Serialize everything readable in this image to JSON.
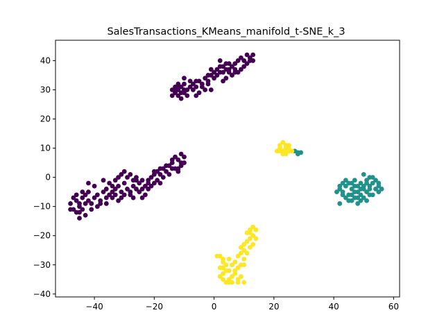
{
  "chart_data": {
    "type": "scatter",
    "title": "SalesTransactions_KMeans_manifold_t-SNE_k_3",
    "xlabel": "",
    "ylabel": "",
    "xlim": [
      -53,
      62
    ],
    "ylim": [
      -41,
      47
    ],
    "xticks": [
      -40,
      -20,
      0,
      20,
      40,
      60
    ],
    "xtick_labels": [
      "−40",
      "−20",
      "0",
      "20",
      "40",
      "60"
    ],
    "yticks": [
      -40,
      -30,
      -20,
      -10,
      0,
      10,
      20,
      30,
      40
    ],
    "ytick_labels": [
      "−40",
      "−30",
      "−20",
      "−10",
      "0",
      "10",
      "20",
      "30",
      "40"
    ],
    "grid": false,
    "legend": "none",
    "series": [
      {
        "color": "#440154",
        "points": [
          [
            -12,
            30
          ],
          [
            -13,
            29
          ],
          [
            -11,
            31
          ],
          [
            -14,
            30
          ],
          [
            -10,
            29
          ],
          [
            -12,
            28
          ],
          [
            -11,
            27
          ],
          [
            -9,
            30
          ],
          [
            -13,
            31
          ],
          [
            -10,
            32
          ],
          [
            -8,
            31
          ],
          [
            -14,
            28
          ],
          [
            -12,
            32
          ],
          [
            -9,
            28
          ],
          [
            -11,
            29
          ],
          [
            -7,
            32
          ],
          [
            -6,
            31
          ],
          [
            -5,
            33
          ],
          [
            -4,
            32
          ],
          [
            -3,
            34
          ],
          [
            -2,
            33
          ],
          [
            -1,
            35
          ],
          [
            0,
            36
          ],
          [
            1,
            37
          ],
          [
            2,
            36
          ],
          [
            3,
            38
          ],
          [
            4,
            37
          ],
          [
            5,
            36
          ],
          [
            6,
            38
          ],
          [
            7,
            39
          ],
          [
            8,
            40
          ],
          [
            9,
            41
          ],
          [
            10,
            40
          ],
          [
            11,
            42
          ],
          [
            12,
            41
          ],
          [
            13,
            42
          ],
          [
            12,
            40
          ],
          [
            6,
            35
          ],
          [
            5,
            37
          ],
          [
            4,
            39
          ],
          [
            3,
            36
          ],
          [
            2,
            38
          ],
          [
            1,
            35
          ],
          [
            0,
            34
          ],
          [
            -1,
            37
          ],
          [
            -2,
            32
          ],
          [
            -3,
            30
          ],
          [
            -4,
            31
          ],
          [
            -5,
            29
          ],
          [
            -6,
            33
          ],
          [
            -7,
            30
          ],
          [
            3,
            33
          ],
          [
            4,
            34
          ],
          [
            -10,
            34
          ],
          [
            -6,
            28
          ],
          [
            8,
            36
          ],
          [
            9,
            37
          ],
          [
            10,
            38
          ],
          [
            7,
            36
          ],
          [
            5,
            39
          ],
          [
            -1,
            30
          ],
          [
            -8,
            33
          ],
          [
            -2,
            35
          ],
          [
            2,
            40
          ],
          [
            7,
            37
          ],
          [
            11,
            39
          ],
          [
            13,
            40
          ],
          [
            -12,
            31
          ],
          [
            -10,
            30
          ],
          [
            -13,
            29.5
          ],
          [
            -45,
            -10
          ],
          [
            -46,
            -8
          ],
          [
            -47,
            -11
          ],
          [
            -44,
            -7
          ],
          [
            -45,
            -12
          ],
          [
            -43,
            -9
          ],
          [
            -46,
            -6
          ],
          [
            -48,
            -9
          ],
          [
            -44,
            -11
          ],
          [
            -42,
            -8
          ],
          [
            -47,
            -7
          ],
          [
            -45,
            -14
          ],
          [
            -43,
            -6
          ],
          [
            -41,
            -9
          ],
          [
            -46,
            -12
          ],
          [
            -48,
            -11
          ],
          [
            -42,
            -5
          ],
          [
            -40,
            -7
          ],
          [
            -44,
            -5
          ],
          [
            -45,
            -9
          ],
          [
            -39,
            -6
          ],
          [
            -38,
            -8
          ],
          [
            -37,
            -5
          ],
          [
            -36,
            -4
          ],
          [
            -35,
            -6
          ],
          [
            -34,
            -7
          ],
          [
            -33,
            -4
          ],
          [
            -32,
            -3
          ],
          [
            -31,
            -5
          ],
          [
            -30,
            -2
          ],
          [
            -29,
            -4
          ],
          [
            -28,
            -6
          ],
          [
            -27,
            -3
          ],
          [
            -26,
            -1
          ],
          [
            -25,
            -2
          ],
          [
            -24,
            -4
          ],
          [
            -23,
            -3
          ],
          [
            -22,
            -1
          ],
          [
            -21,
            0
          ],
          [
            -20,
            1
          ],
          [
            -19,
            2
          ],
          [
            -18,
            1
          ],
          [
            -17,
            3
          ],
          [
            -16,
            2
          ],
          [
            -15,
            4
          ],
          [
            -14,
            5
          ],
          [
            -13,
            3
          ],
          [
            -12,
            6
          ],
          [
            -11,
            5
          ],
          [
            -10,
            7
          ],
          [
            -11,
            4
          ],
          [
            -12,
            3
          ],
          [
            -14,
            3
          ],
          [
            -16,
            4
          ],
          [
            -18,
            3
          ],
          [
            -20,
            2
          ],
          [
            -22,
            -2
          ],
          [
            -24,
            -1
          ],
          [
            -26,
            -4
          ],
          [
            -28,
            -5
          ],
          [
            -30,
            -6
          ],
          [
            -32,
            -8
          ],
          [
            -34,
            -3
          ],
          [
            -36,
            -7
          ],
          [
            -38,
            -9
          ],
          [
            -33,
            -1
          ],
          [
            -31,
            1
          ],
          [
            -29,
            0
          ],
          [
            -27,
            -7
          ],
          [
            -25,
            -5
          ],
          [
            -35,
            -2
          ],
          [
            -37,
            -1
          ],
          [
            -30,
            2
          ],
          [
            -28,
            1
          ],
          [
            -26,
            0
          ],
          [
            -23,
            -6
          ],
          [
            -21,
            -3
          ],
          [
            -19,
            -1
          ],
          [
            -17,
            0
          ],
          [
            -15,
            1
          ],
          [
            -13,
            7
          ],
          [
            -10,
            5
          ],
          [
            -11,
            8
          ],
          [
            -12,
            2
          ],
          [
            -14,
            6
          ],
          [
            -40,
            -3
          ],
          [
            -41,
            -11
          ],
          [
            -43,
            -13
          ],
          [
            -39,
            -10
          ],
          [
            -42,
            -2
          ],
          [
            -33,
            -6
          ],
          [
            -31,
            -7
          ],
          [
            -36,
            -9
          ],
          [
            -34,
            -5
          ],
          [
            -32,
            0
          ],
          [
            -27,
            -1
          ],
          [
            -24,
            -7
          ],
          [
            -22,
            -4
          ],
          [
            -20,
            -2
          ],
          [
            -18,
            -2
          ]
        ]
      },
      {
        "color": "#21918c",
        "points": [
          [
            42,
            -4
          ],
          [
            43,
            -5
          ],
          [
            44,
            -3
          ],
          [
            45,
            -6
          ],
          [
            46,
            -4
          ],
          [
            47,
            -5
          ],
          [
            48,
            -3
          ],
          [
            49,
            -6
          ],
          [
            50,
            -4
          ],
          [
            51,
            -5
          ],
          [
            52,
            -3
          ],
          [
            53,
            -2
          ],
          [
            54,
            -4
          ],
          [
            55,
            -3
          ],
          [
            56,
            -4
          ],
          [
            44,
            -7
          ],
          [
            46,
            -8
          ],
          [
            48,
            -7
          ],
          [
            50,
            -7
          ],
          [
            52,
            -6
          ],
          [
            45,
            -2
          ],
          [
            47,
            -1
          ],
          [
            49,
            -2
          ],
          [
            51,
            -1
          ],
          [
            53,
            0
          ],
          [
            50,
            1
          ],
          [
            52,
            0
          ],
          [
            43,
            -6
          ],
          [
            41,
            -5
          ],
          [
            42,
            -3
          ],
          [
            54,
            -1
          ],
          [
            55,
            -5
          ],
          [
            46,
            -6
          ],
          [
            48,
            -5
          ],
          [
            49,
            -4
          ],
          [
            50,
            -3
          ],
          [
            51,
            -2
          ],
          [
            47,
            -3
          ],
          [
            46,
            -2
          ],
          [
            44,
            -1
          ],
          [
            43,
            -2
          ],
          [
            45,
            -8
          ],
          [
            48,
            -9
          ],
          [
            51,
            -8
          ],
          [
            53,
            -6
          ],
          [
            42,
            -9
          ],
          [
            55,
            -2
          ],
          [
            52,
            -4
          ],
          [
            47,
            -7
          ],
          [
            49,
            -8
          ],
          [
            27,
            9
          ],
          [
            28,
            8.5
          ],
          [
            29,
            8.5
          ],
          [
            28,
            8
          ]
        ]
      },
      {
        "color": "#fde725",
        "points": [
          [
            24,
            11
          ],
          [
            23,
            12
          ],
          [
            25,
            10
          ],
          [
            22,
            10
          ],
          [
            23,
            9
          ],
          [
            24,
            8
          ],
          [
            25,
            9
          ],
          [
            21,
            9
          ],
          [
            22,
            11
          ],
          [
            24,
            10
          ],
          [
            23,
            8
          ],
          [
            26,
            9
          ],
          [
            25,
            11
          ],
          [
            24,
            9
          ],
          [
            22,
            9
          ],
          [
            12,
            -18
          ],
          [
            13,
            -20
          ],
          [
            11,
            -22
          ],
          [
            12,
            -24
          ],
          [
            10,
            -25
          ],
          [
            13,
            -17
          ],
          [
            11,
            -19
          ],
          [
            14,
            -21
          ],
          [
            12,
            -21
          ],
          [
            10,
            -23
          ],
          [
            9,
            -26
          ],
          [
            8,
            -27
          ],
          [
            10,
            -28
          ],
          [
            7,
            -29
          ],
          [
            9,
            -30
          ],
          [
            6,
            -30
          ],
          [
            8,
            -31
          ],
          [
            5,
            -32
          ],
          [
            7,
            -33
          ],
          [
            4,
            -32
          ],
          [
            6,
            -34
          ],
          [
            3,
            -33
          ],
          [
            5,
            -35
          ],
          [
            2,
            -34
          ],
          [
            4,
            -36
          ],
          [
            3,
            -35
          ],
          [
            6,
            -36
          ],
          [
            8,
            -35
          ],
          [
            9,
            -34
          ],
          [
            7,
            -32
          ],
          [
            2,
            -27
          ],
          [
            1,
            -27
          ],
          [
            3,
            -29
          ],
          [
            4,
            -30
          ],
          [
            5,
            -28
          ],
          [
            2,
            -31
          ],
          [
            3,
            -31
          ],
          [
            8,
            -36
          ],
          [
            10,
            -30
          ],
          [
            11,
            -26
          ],
          [
            13,
            -23
          ],
          [
            9,
            -24
          ],
          [
            12,
            -19
          ],
          [
            14,
            -18
          ],
          [
            5,
            -36
          ],
          [
            10,
            -36
          ],
          [
            3,
            -28
          ]
        ]
      }
    ]
  }
}
